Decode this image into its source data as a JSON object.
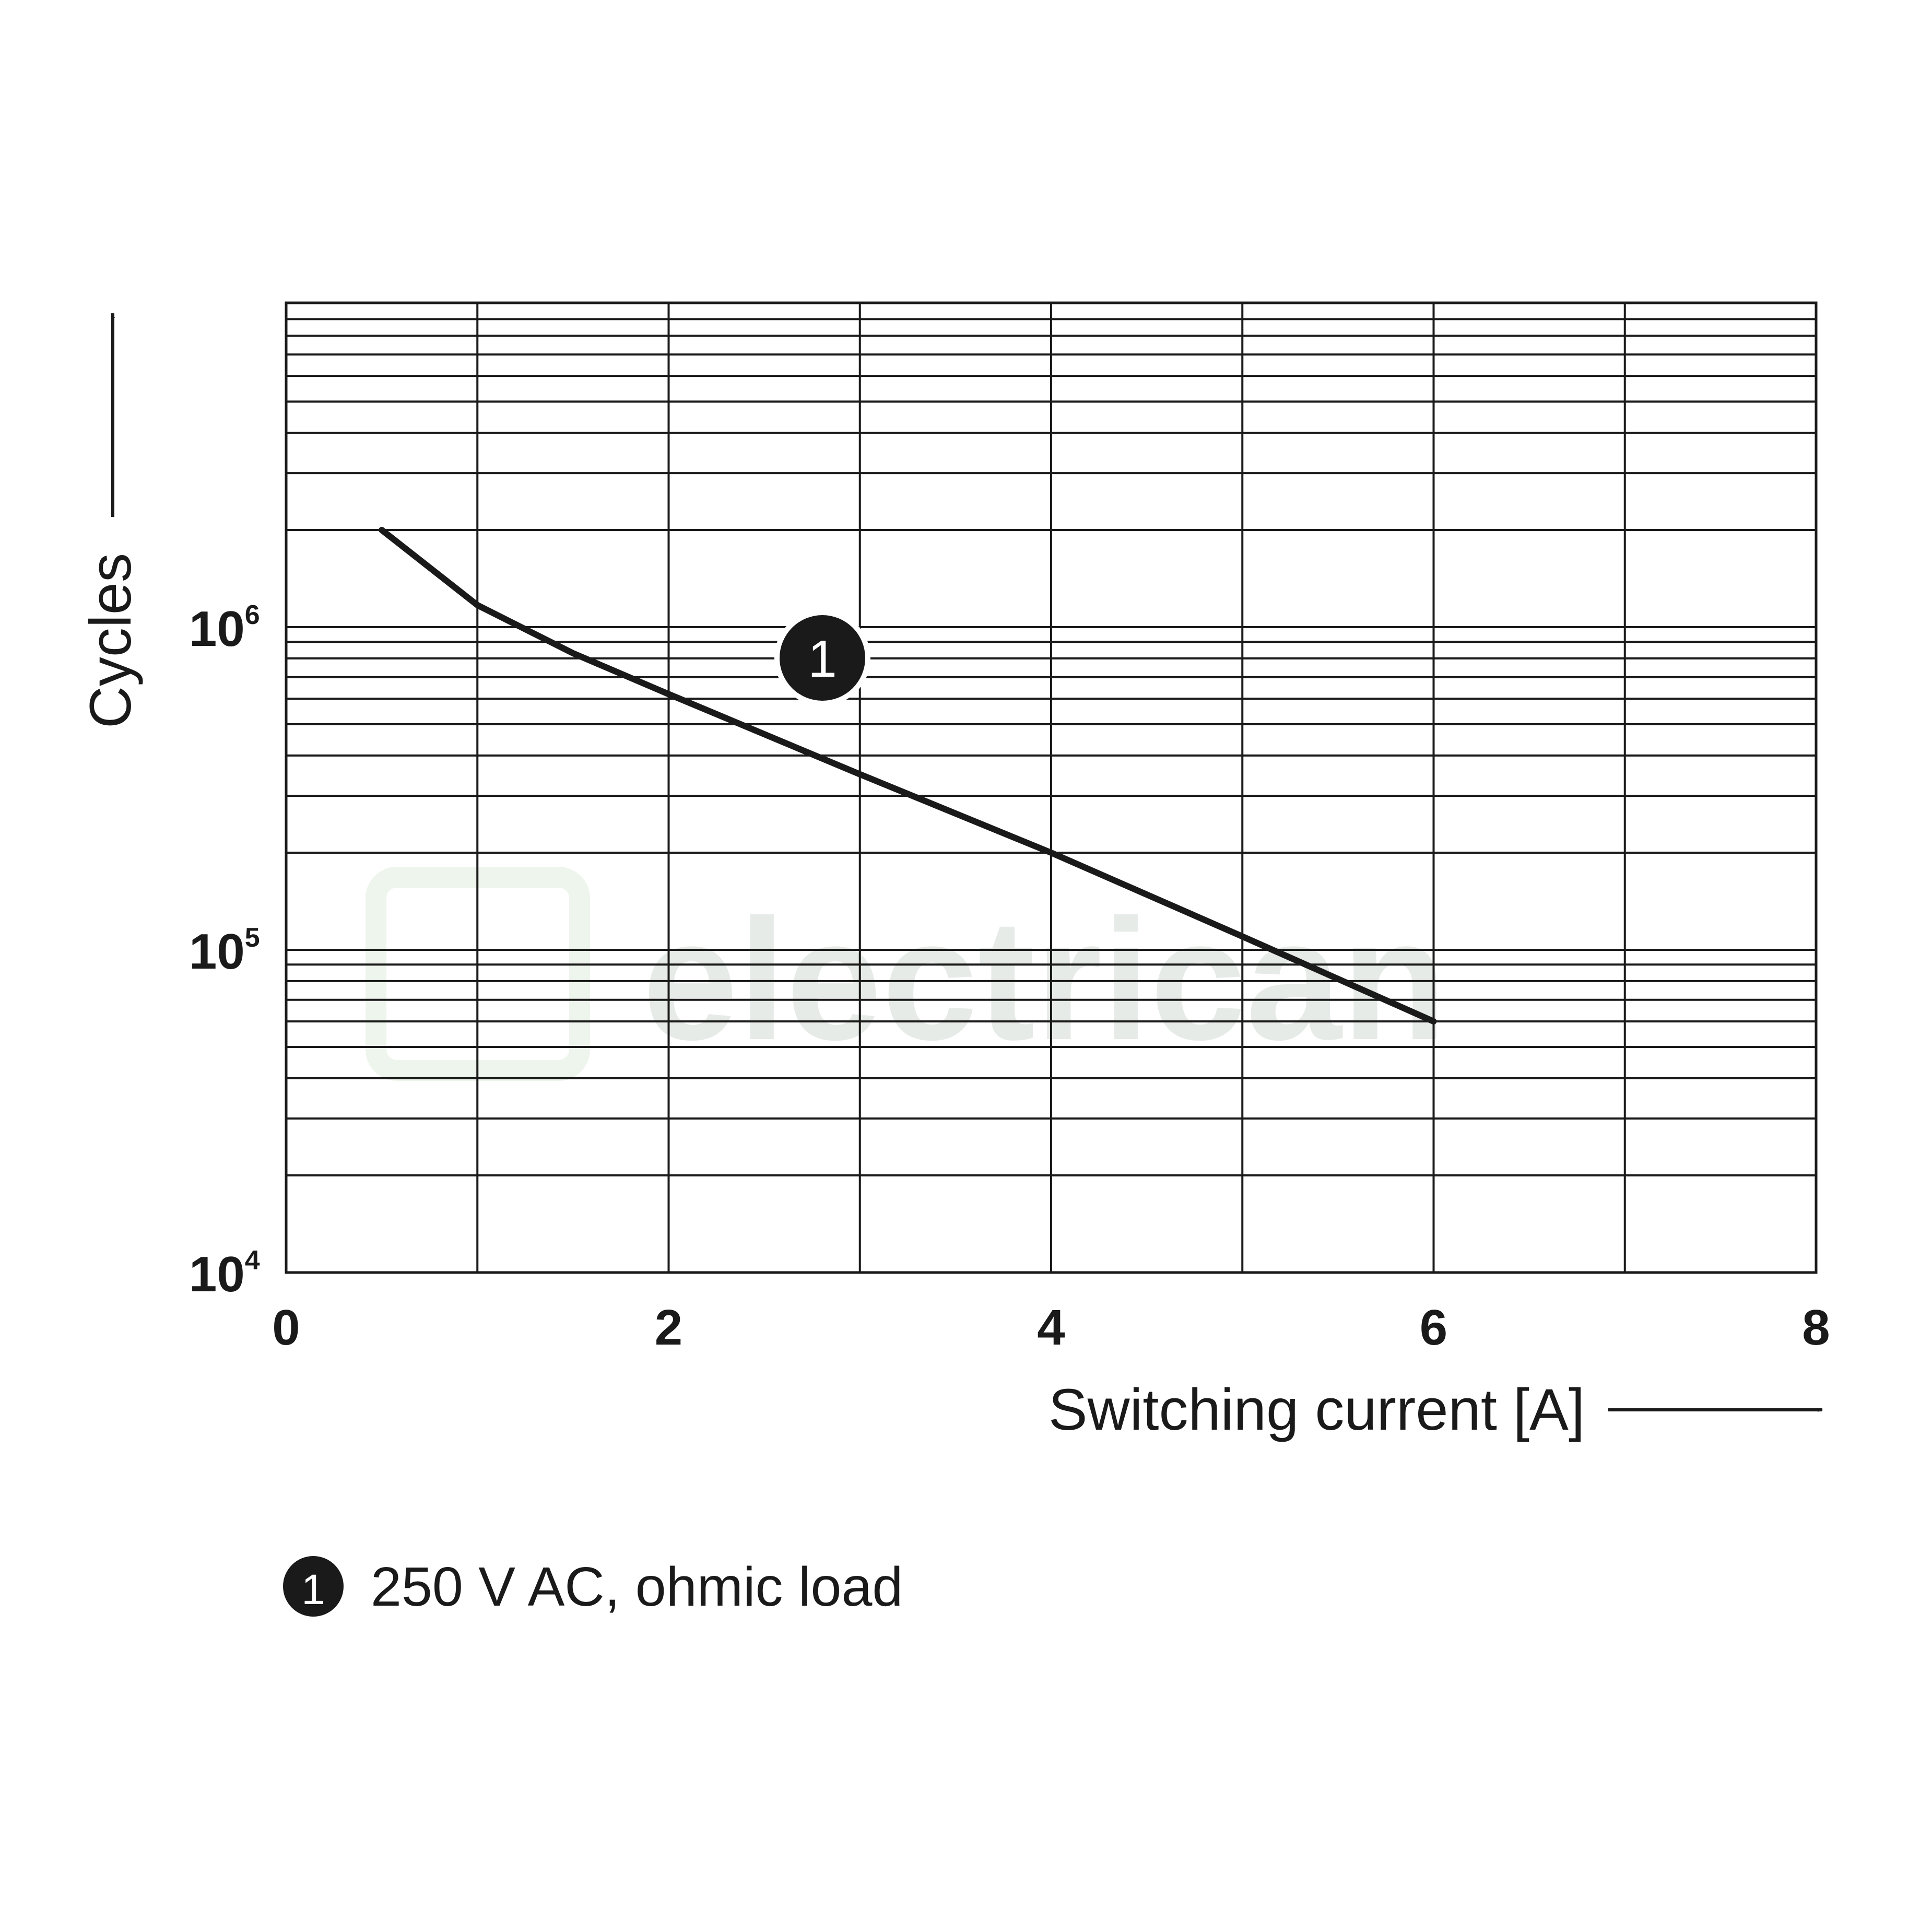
{
  "chart_data": {
    "type": "line",
    "xlabel": "Switching current [A]",
    "ylabel": "Cycles",
    "xlim": [
      0,
      8
    ],
    "ylim": [
      10000,
      10000000
    ],
    "yscale": "log",
    "grid": true,
    "x_ticks": [
      "0",
      "2",
      "4",
      "6",
      "8"
    ],
    "y_ticks": [
      {
        "base": "10",
        "exp": "4"
      },
      {
        "base": "10",
        "exp": "5"
      },
      {
        "base": "10",
        "exp": "6"
      }
    ],
    "series": [
      {
        "name": "250 V AC, ohmic load",
        "marker_label": "1",
        "color": "#1a1a1a",
        "x": [
          0.5,
          1.0,
          1.5,
          2.0,
          3.0,
          4.0,
          5.0,
          6.0
        ],
        "y": [
          2000000,
          1170000,
          830000,
          620000,
          350000,
          200000,
          110000,
          60000
        ]
      }
    ],
    "legend": {
      "position": "bottom-left",
      "entries": [
        {
          "marker": "1",
          "label": "250 V AC, ohmic load"
        }
      ]
    }
  },
  "watermark": "electrican"
}
